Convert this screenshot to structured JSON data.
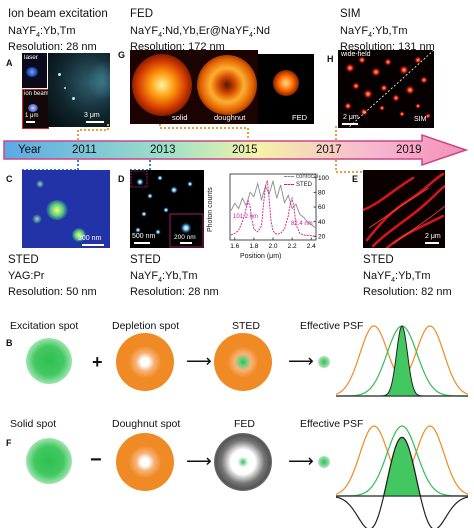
{
  "timeline": {
    "label": "Year",
    "years": [
      "2011",
      "2013",
      "2015",
      "2017",
      "2019"
    ]
  },
  "panel_a": {
    "title": "Ion beam excitation",
    "material": "NaYF4:Yb,Tm",
    "resolution": "Resolution: 28 nm",
    "letter": "A",
    "inset_laser": "laser",
    "inset_ion": "ion beam",
    "scale_small": "1 μm",
    "scale_main": "3 μm"
  },
  "panel_g": {
    "title": "FED",
    "material": "NaYF4:Nd,Yb,Er@NaYF4:Nd",
    "resolution": "Resolution: 172 nm",
    "letter": "G",
    "img_solid": "solid",
    "img_doughnut": "doughnut",
    "img_fed": "FED"
  },
  "panel_h": {
    "title": "SIM",
    "material": "NaYF4:Yb,Tm",
    "resolution": "Resolution: 131 nm",
    "letter": "H",
    "label_widefield": "wide-field",
    "label_sim": "SIM",
    "scale": "2 μm"
  },
  "panel_c": {
    "letter": "C",
    "title": "STED",
    "material": "YAG:Pr",
    "resolution": "Resolution: 50 nm",
    "scale": "300 nm"
  },
  "panel_d": {
    "letter": "D",
    "title": "STED",
    "material": "NaYF4:Yb,Tm",
    "resolution": "Resolution: 28 nm",
    "scale_main": "500 nm",
    "scale_inset": "200 nm"
  },
  "panel_e": {
    "letter": "E",
    "title": "STED",
    "material": "NaYF4:Yb,Tm",
    "resolution": "Resolution: 82 nm",
    "scale": "2 μm"
  },
  "chart_data": {
    "type": "line",
    "xlabel": "Position (μm)",
    "ylabel": "Photon counts",
    "xlim": [
      1.55,
      2.45
    ],
    "ylim": [
      15,
      105
    ],
    "xticks": [
      "1.6",
      "1.8",
      "2.0",
      "2.2",
      "2.4"
    ],
    "yticks": [
      "20",
      "40",
      "60",
      "80",
      "100"
    ],
    "legend": [
      "confocal",
      "STED"
    ],
    "annotations": [
      "101.2 nm",
      "82.4 nm"
    ],
    "series": [
      {
        "name": "confocal",
        "x": [
          1.56,
          1.6,
          1.64,
          1.68,
          1.72,
          1.76,
          1.8,
          1.84,
          1.88,
          1.92,
          1.96,
          2.0,
          2.04,
          2.08,
          2.12,
          2.16,
          2.2,
          2.24,
          2.28,
          2.32,
          2.36,
          2.4,
          2.44
        ],
        "y": [
          55,
          65,
          58,
          72,
          62,
          80,
          74,
          92,
          70,
          88,
          78,
          95,
          72,
          90,
          66,
          76,
          58,
          64,
          50,
          46,
          40,
          36,
          32
        ]
      },
      {
        "name": "STED",
        "x": [
          1.56,
          1.6,
          1.64,
          1.68,
          1.72,
          1.74,
          1.76,
          1.78,
          1.8,
          1.84,
          1.88,
          1.9,
          1.92,
          1.94,
          1.96,
          1.98,
          2.0,
          2.02,
          2.04,
          2.08,
          2.12,
          2.16,
          2.18,
          2.2,
          2.22,
          2.24,
          2.28,
          2.32,
          2.36,
          2.4,
          2.44
        ],
        "y": [
          22,
          24,
          28,
          40,
          58,
          68,
          60,
          42,
          30,
          26,
          34,
          62,
          88,
          96,
          70,
          40,
          28,
          24,
          23,
          24,
          30,
          48,
          64,
          72,
          60,
          36,
          24,
          22,
          21,
          21,
          20
        ]
      }
    ]
  },
  "row_b": {
    "letter": "B",
    "label_excitation": "Excitation spot",
    "label_depletion": "Depletion spot",
    "label_sted": "STED",
    "label_psf": "Effective PSF",
    "op_plus": "+"
  },
  "row_f": {
    "letter": "F",
    "label_solid": "Solid spot",
    "label_doughnut": "Doughnut spot",
    "label_fed": "FED",
    "label_psf": "Effective PSF",
    "op_minus": "−"
  },
  "colors": {
    "green": "#2bbf4e",
    "orange": "#f08a24",
    "pink": "#d01c8b",
    "dotted_orange": "#e8a13a",
    "dotted_blue": "#3c7dc4"
  }
}
